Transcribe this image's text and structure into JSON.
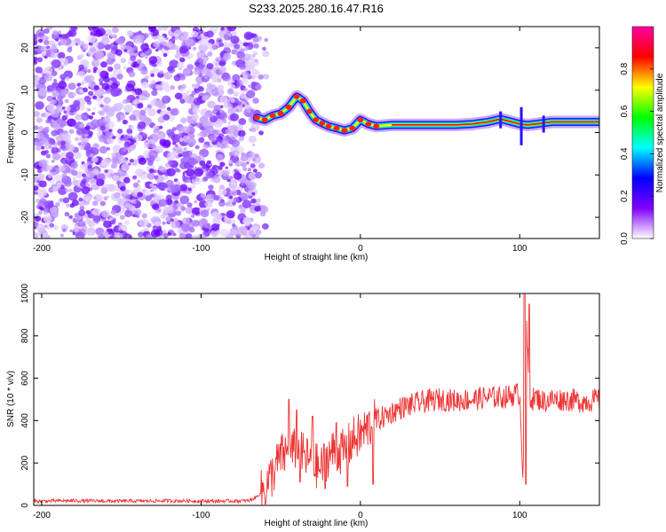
{
  "title": "S233.2025.280.16.47.R16",
  "chart_data": [
    {
      "type": "heatmap",
      "xlabel": "Height of straight line (km)",
      "ylabel": "Frequency (Hz)",
      "xlim": [
        -205,
        150
      ],
      "ylim": [
        -25,
        25
      ],
      "xticks": [
        -200,
        -100,
        0,
        100
      ],
      "yticks": [
        -20,
        -10,
        0,
        10,
        20
      ],
      "colorbar": {
        "label": "Normalized spectral amplitude",
        "range": [
          0,
          1
        ],
        "ticks": [
          "0.0",
          "0.2",
          "0.4",
          "0.6",
          "0.8"
        ],
        "colors": [
          "#ffffff",
          "#8000ff",
          "#0000ff",
          "#00ffff",
          "#00ff00",
          "#ffff00",
          "#ff0000",
          "#ff00a0"
        ]
      },
      "noise_region_end_x": -65,
      "ridge": [
        {
          "x": -65,
          "y": 3.5
        },
        {
          "x": -60,
          "y": 3
        },
        {
          "x": -55,
          "y": 4
        },
        {
          "x": -50,
          "y": 4.5
        },
        {
          "x": -45,
          "y": 6
        },
        {
          "x": -40,
          "y": 8.5
        },
        {
          "x": -36,
          "y": 7.5
        },
        {
          "x": -32,
          "y": 5
        },
        {
          "x": -28,
          "y": 3
        },
        {
          "x": -24,
          "y": 2.2
        },
        {
          "x": -20,
          "y": 1.5
        },
        {
          "x": -15,
          "y": 1
        },
        {
          "x": -10,
          "y": 0.5
        },
        {
          "x": -5,
          "y": 1
        },
        {
          "x": 0,
          "y": 3
        },
        {
          "x": 5,
          "y": 2
        },
        {
          "x": 10,
          "y": 1.5
        },
        {
          "x": 20,
          "y": 1.8
        },
        {
          "x": 40,
          "y": 1.8
        },
        {
          "x": 60,
          "y": 1.8
        },
        {
          "x": 70,
          "y": 2
        },
        {
          "x": 80,
          "y": 2.5
        },
        {
          "x": 88,
          "y": 3.2
        },
        {
          "x": 95,
          "y": 2.5
        },
        {
          "x": 100,
          "y": 2
        },
        {
          "x": 105,
          "y": 1.8
        },
        {
          "x": 110,
          "y": 2
        },
        {
          "x": 120,
          "y": 2.5
        },
        {
          "x": 135,
          "y": 2.5
        },
        {
          "x": 150,
          "y": 2.5
        }
      ]
    },
    {
      "type": "line",
      "xlabel": "Height of straight line (km)",
      "ylabel": "SNR (10 * v/v)",
      "xlim": [
        -205,
        150
      ],
      "ylim": [
        0,
        1000
      ],
      "xticks": [
        -200,
        -100,
        0,
        100
      ],
      "yticks": [
        0,
        200,
        400,
        600,
        800,
        1000
      ],
      "color": "#ee3333",
      "series": [
        {
          "x": [
            -205,
            -180,
            -150,
            -120,
            -90,
            -70,
            -65,
            -60,
            -55,
            -50,
            -45,
            -40,
            -35,
            -30,
            -25,
            -20,
            -15,
            -10,
            -5,
            0,
            5,
            10,
            15,
            20,
            25,
            30,
            40,
            50,
            60,
            70,
            80,
            90,
            95,
            100,
            102,
            104,
            106,
            108,
            110,
            115,
            120,
            130,
            140,
            150
          ],
          "y": [
            20,
            22,
            20,
            22,
            20,
            22,
            40,
            80,
            150,
            230,
            250,
            260,
            230,
            200,
            170,
            240,
            260,
            250,
            310,
            330,
            370,
            400,
            420,
            440,
            460,
            470,
            490,
            500,
            495,
            500,
            510,
            510,
            520,
            530,
            150,
            900,
            520,
            500,
            510,
            490,
            500,
            500,
            490,
            500
          ]
        }
      ],
      "spikes": [
        {
          "x": -45,
          "y": 500
        },
        {
          "x": -40,
          "y": 450
        },
        {
          "x": -38,
          "y": 110
        },
        {
          "x": -30,
          "y": 420
        },
        {
          "x": -22,
          "y": 80
        },
        {
          "x": -15,
          "y": 390
        },
        {
          "x": -8,
          "y": 90
        },
        {
          "x": 8,
          "y": 100
        },
        {
          "x": 103,
          "y": 1000
        },
        {
          "x": 104,
          "y": 100
        },
        {
          "x": 106,
          "y": 950
        }
      ]
    }
  ]
}
